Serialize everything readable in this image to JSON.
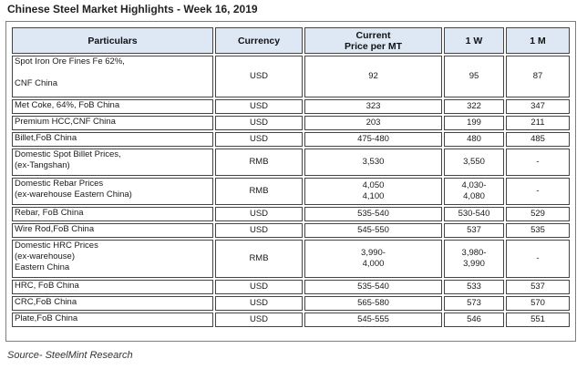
{
  "title": "Chinese Steel Market Highlights - Week 16, 2019",
  "headers": {
    "particulars": "Particulars",
    "currency": "Currency",
    "current": "Current\nPrice per MT",
    "w1": "1 W",
    "m1": "1 M"
  },
  "rows": [
    {
      "particulars": "Spot Iron Ore Fines Fe 62%,\n\nCNF China",
      "currency": "USD",
      "current": "92",
      "w1": "95",
      "m1": "87"
    },
    {
      "particulars": "Met Coke, 64%, FoB China",
      "currency": "USD",
      "current": "323",
      "w1": "322",
      "m1": "347"
    },
    {
      "particulars": "Premium HCC,CNF China",
      "currency": "USD",
      "current": "203",
      "w1": "199",
      "m1": "211"
    },
    {
      "particulars": "Billet,FoB China",
      "currency": "USD",
      "current": "475-480",
      "w1": "480",
      "m1": "485"
    },
    {
      "particulars": "Domestic Spot Billet Prices,\n(ex-Tangshan)",
      "currency": "RMB",
      "current": "3,530",
      "w1": "3,550",
      "m1": "-"
    },
    {
      "particulars": "Domestic Rebar Prices\n(ex-warehouse Eastern China)",
      "currency": "RMB",
      "current": "4,050\n4,100",
      "w1": "4,030-\n4,080",
      "m1": "-"
    },
    {
      "particulars": "Rebar, FoB China",
      "currency": "USD",
      "current": "535-540",
      "w1": "530-540",
      "m1": "529"
    },
    {
      "particulars": "Wire Rod,FoB China",
      "currency": "USD",
      "current": "545-550",
      "w1": "537",
      "m1": "535"
    },
    {
      "particulars": "Domestic HRC Prices\n(ex-warehouse)\nEastern China",
      "currency": "RMB",
      "current": "3,990-\n4,000",
      "w1": "3,980-\n3,990",
      "m1": "-"
    },
    {
      "particulars": "HRC, FoB China",
      "currency": "USD",
      "current": "535-540",
      "w1": "533",
      "m1": "537"
    },
    {
      "particulars": "CRC,FoB China",
      "currency": "USD",
      "current": "565-580",
      "w1": "573",
      "m1": "570"
    },
    {
      "particulars": "Plate,FoB China",
      "currency": "USD",
      "current": "545-555",
      "w1": "546",
      "m1": "551"
    }
  ],
  "source": "Source- SteelMint Research"
}
